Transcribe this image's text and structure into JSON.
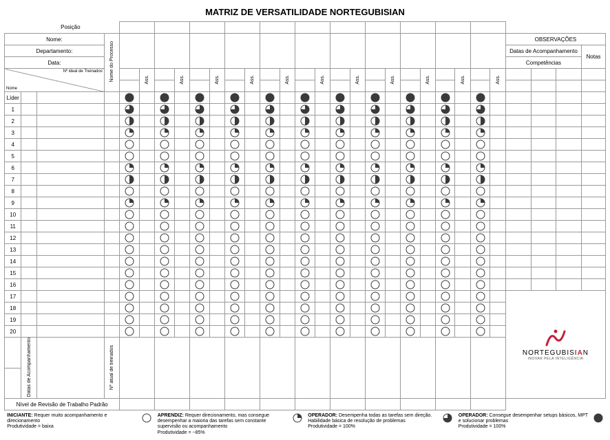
{
  "title": "MATRIZ DE VERSATILIDADE NORTEGUBISIAN",
  "header": {
    "posicao": "Posição",
    "nome": "Nome:",
    "departamento": "Departamento:",
    "data": "Data:",
    "nome_processo": "Nome do Processo",
    "observacoes": "OBSERVAÇÕES",
    "datas_acompanhamento": "Datas de Acompanhamento",
    "competencias": "Competências",
    "notas": "Notas"
  },
  "col_header": {
    "diag_top": "Nº ideal de Treinados",
    "diag_bottom": "Nome",
    "ass": "Ass."
  },
  "row_labels": [
    "Líder",
    "1",
    "2",
    "3",
    "4",
    "5",
    "6",
    "7",
    "8",
    "9",
    "10",
    "11",
    "12",
    "13",
    "14",
    "15",
    "16",
    "17",
    "18",
    "19",
    "20"
  ],
  "row_levels": [
    4,
    3,
    2,
    1,
    0,
    0,
    1,
    2,
    0,
    1,
    0,
    0,
    0,
    0,
    0,
    0,
    0,
    0,
    0,
    0,
    0
  ],
  "columns_count": 11,
  "footer": {
    "datas_acomp": "Datas de Acompanhamento",
    "n_atual": "Nº atual de treinados",
    "nivel_revisao": "Nível de Revisão de Trabalho Padrão"
  },
  "legend": {
    "l1_title": "INICIANTE:",
    "l1_body": " Requer muito acompanhamento e direcionamento",
    "l1_prod": "Produtividade = baixa",
    "l2_title": "APRENDIZ:",
    "l2_body": " Requer direcionamento, mas consegue desempenhar a maioria das tarefas sem constante supervisão ou acompanhamento",
    "l2_prod": "Produtividade = ~85%",
    "l3_title": "OPERADOR:",
    "l3_body": " Desempenha todas as tarefas sem direção. Habilidade básica de resolução de problemas",
    "l3_prod": "Produtividade = 100%",
    "l4_title": "OPERADOR:",
    "l4_body": " Consegue desempenhar setups básicos, MPT e solucionar problemas",
    "l4_prod": "Produtividade = 100%"
  },
  "logo": {
    "brand": "NORTEGUBISI",
    "accent": "A",
    "suffix": "N",
    "tagline": "INOVAR PELA INTELIGÊNCIA"
  },
  "style": {
    "circle_fill": "#3a3a3a",
    "circle_stroke": "#3a3a3a",
    "circle_r": 6,
    "circle_size": 14,
    "accent_color": "#c41e3a"
  }
}
